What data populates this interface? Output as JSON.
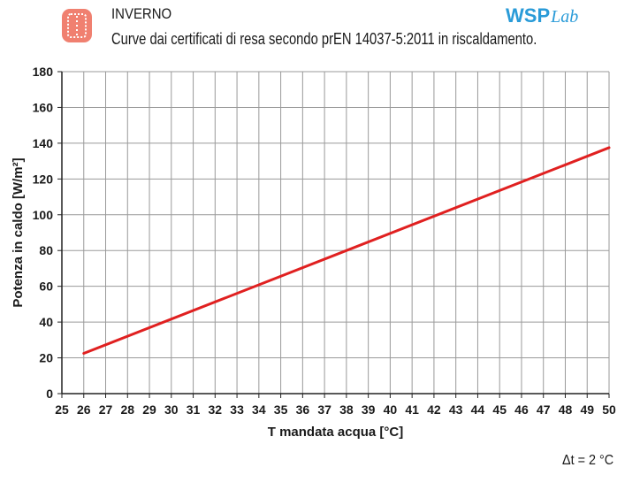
{
  "header": {
    "title": "INVERNO",
    "subtitle": "Curve dai certificati di resa secondo prEN 14037-5:2011 in riscaldamento."
  },
  "brand": {
    "main": "WSP",
    "suffix": "Lab"
  },
  "icons": {
    "season": "radiator-winter-icon"
  },
  "colors": {
    "line": "#e02020",
    "grid": "#9a9a9a",
    "icon": "#f08070",
    "brand": "#2a9bd8"
  },
  "note": "Δt = 2 °C",
  "chart_data": {
    "type": "line",
    "title": "",
    "xlabel": "T mandata acqua [°C]",
    "ylabel": "Potenza in caldo [W/m²]",
    "xlim": [
      25,
      50
    ],
    "ylim": [
      0,
      180
    ],
    "xticks": [
      25,
      26,
      27,
      28,
      29,
      30,
      31,
      32,
      33,
      34,
      35,
      36,
      37,
      38,
      39,
      40,
      41,
      42,
      43,
      44,
      45,
      46,
      47,
      48,
      49,
      50
    ],
    "yticks": [
      0,
      20,
      40,
      60,
      80,
      100,
      120,
      140,
      160,
      180
    ],
    "grid": true,
    "series": [
      {
        "x": [
          26,
          50
        ],
        "y": [
          22.5,
          137.5
        ]
      }
    ]
  }
}
